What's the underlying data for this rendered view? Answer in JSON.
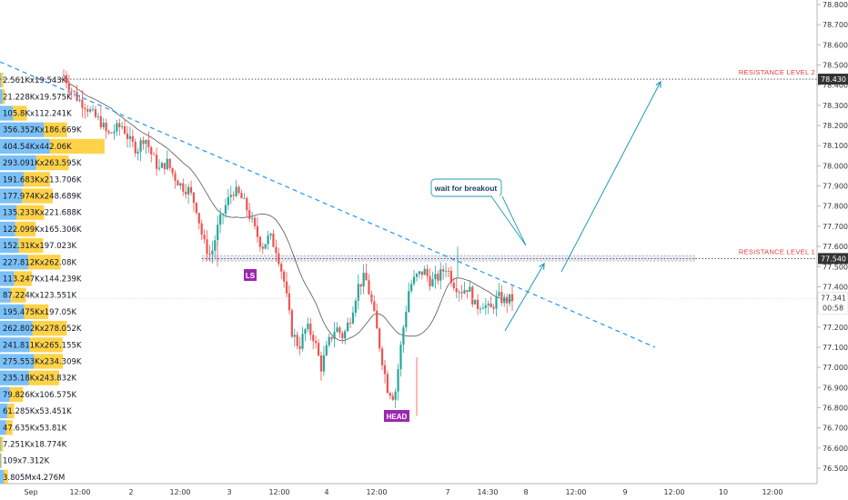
{
  "chart_data": {
    "type": "candlestick",
    "instrument_price_last": "77.341",
    "countdown": "00:58",
    "ylim": [
      76.45,
      78.82
    ],
    "y_ticks": [
      "78.800",
      "78.700",
      "78.600",
      "78.500",
      "78.400",
      "78.300",
      "78.200",
      "78.100",
      "78.000",
      "77.900",
      "77.800",
      "77.700",
      "77.600",
      "77.500",
      "77.400",
      "77.200",
      "77.100",
      "77.000",
      "76.900",
      "76.800",
      "76.700",
      "76.600",
      "76.500"
    ],
    "x_ticks": [
      "Sep",
      "12:00",
      "2",
      "12:00",
      "3",
      "12:00",
      "4",
      "12:00",
      "7",
      "14:30",
      "8",
      "12:00",
      "9",
      "12:00",
      "10",
      "12:00"
    ],
    "resistance_levels": [
      {
        "label": "RESISTANCE LEVEL 2",
        "value": 78.43,
        "price_tag": "78.430"
      },
      {
        "label": "RESISTANCE LEVEL 1",
        "value": 77.54,
        "price_tag": "77.540"
      }
    ],
    "annotations": {
      "left_shoulder": "LS",
      "head": "HEAD",
      "note": "wait for breakout"
    },
    "volume_profile": [
      "2.561Kx19.543K",
      "21.228Kx19.575K",
      "105.8Kx112.241K",
      "356.352Kx186.669K",
      "404.54Kx442.06K",
      "293.091Kx263.595K",
      "191.683Kx213.706K",
      "177.974Kx248.689K",
      "135.233Kx221.688K",
      "122.099Kx165.306K",
      "152.31Kx197.023K",
      "227.812Kx262.08K",
      "113.247Kx144.239K",
      "87.224Kx123.551K",
      "195.475Kx197.05K",
      "262.802Kx278.052K",
      "241.811Kx265.155K",
      "275.553Kx234.309K",
      "235.18Kx243.832K",
      "79.826Kx106.575K",
      "61.285Kx53.451K",
      "47.635Kx53.81K",
      "7.251Kx18.774K",
      "109x7.312K",
      "3.805Mx4.276M"
    ],
    "volume_bars": [
      {
        "buy": 2.561,
        "sell": 19.543
      },
      {
        "buy": 21.228,
        "sell": 19.575
      },
      {
        "buy": 105.8,
        "sell": 112.241
      },
      {
        "buy": 356.352,
        "sell": 186.669
      },
      {
        "buy": 404.54,
        "sell": 442.06
      },
      {
        "buy": 293.091,
        "sell": 263.595
      },
      {
        "buy": 191.683,
        "sell": 213.706
      },
      {
        "buy": 177.974,
        "sell": 248.689
      },
      {
        "buy": 135.233,
        "sell": 221.688
      },
      {
        "buy": 122.099,
        "sell": 165.306
      },
      {
        "buy": 152.31,
        "sell": 197.023
      },
      {
        "buy": 227.812,
        "sell": 262.08
      },
      {
        "buy": 113.247,
        "sell": 144.239
      },
      {
        "buy": 87.224,
        "sell": 123.551
      },
      {
        "buy": 195.475,
        "sell": 197.05
      },
      {
        "buy": 262.802,
        "sell": 278.052
      },
      {
        "buy": 241.811,
        "sell": 265.155
      },
      {
        "buy": 275.553,
        "sell": 234.309
      },
      {
        "buy": 235.18,
        "sell": 243.832
      },
      {
        "buy": 79.826,
        "sell": 106.575
      },
      {
        "buy": 61.285,
        "sell": 53.451
      },
      {
        "buy": 47.635,
        "sell": 53.81
      },
      {
        "buy": 7.251,
        "sell": 18.774
      },
      {
        "buy": 0.109,
        "sell": 7.312
      },
      {
        "buy": 3805,
        "sell": 4276
      }
    ],
    "path_points": [
      78.45,
      78.38,
      78.33,
      78.3,
      78.25,
      78.22,
      78.15,
      78.18,
      78.2,
      78.12,
      78.08,
      78.15,
      78.05,
      77.98,
      78.02,
      77.95,
      77.9,
      77.88,
      77.8,
      77.62,
      77.55,
      77.7,
      77.8,
      77.88,
      77.85,
      77.78,
      77.68,
      77.6,
      77.65,
      77.58,
      77.42,
      77.18,
      77.1,
      77.2,
      77.15,
      77.0,
      77.12,
      77.2,
      77.15,
      77.25,
      77.4,
      77.45,
      77.3,
      77.1,
      76.9,
      76.85,
      77.15,
      77.4,
      77.45,
      77.48,
      77.42,
      77.45,
      77.5,
      77.42,
      77.38,
      77.4,
      77.3,
      77.32,
      77.28,
      77.35,
      77.33,
      77.34
    ],
    "colors": {
      "up": "#26a69a",
      "down": "#ef5350",
      "trend": "#2196f3",
      "arrow": "#1e9bb5",
      "ma": "#555555",
      "res_dot": "#444444",
      "res_text": "#e53935",
      "label": "#9c27b0",
      "vol_buy": "#64b5f6",
      "vol_sell": "#ffca28"
    }
  }
}
